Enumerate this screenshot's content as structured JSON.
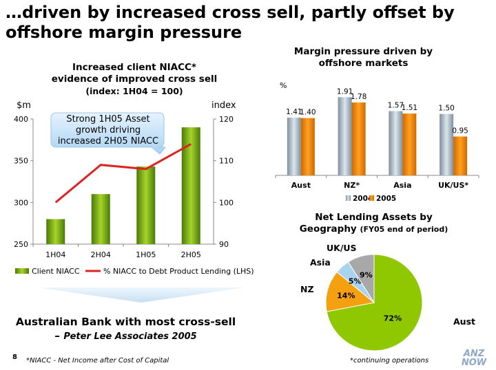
{
  "slide": {
    "title": "…driven by increased cross sell, partly offset by offshore margin pressure",
    "page_number": "8",
    "footnote_left": "*NIACC - Net Income after Cost of Capital",
    "footnote_right": "*continuing operations",
    "logo_text": [
      "ANZ",
      "NOW"
    ],
    "bottom_statement": "Australian Bank with most cross-sell",
    "bottom_attribution_dash": "–",
    "bottom_attribution": "Peter Lee Associates 2005"
  },
  "callout": {
    "lines": [
      "Strong 1H05 Asset",
      "growth driving",
      "increased 2H05 NIACC"
    ]
  },
  "chart_data": [
    {
      "type": "bar",
      "title_lines": [
        "Increased client NIACC*",
        "evidence of improved cross sell"
      ],
      "subtitle": "(index: 1H04 = 100)",
      "ylabel": "$m",
      "y2label": "index",
      "categories": [
        "1H04",
        "2H04",
        "1H05",
        "2H05"
      ],
      "ylim": [
        250,
        400
      ],
      "yticks": [
        "250",
        "300",
        "350",
        "400"
      ],
      "y2lim": [
        90,
        120
      ],
      "y2ticks": [
        "90",
        "100",
        "110",
        "120"
      ],
      "series": [
        {
          "name": "Client NIACC",
          "kind": "bar",
          "axis": "left",
          "color": "#6a9e10",
          "values": [
            280,
            310,
            343,
            390
          ]
        },
        {
          "name": "% NIACC to Debt Product Lending (LHS)",
          "kind": "line",
          "axis": "right",
          "color": "#dd2222",
          "values": [
            100,
            109,
            108,
            114
          ]
        }
      ],
      "legend": "bottom"
    },
    {
      "type": "bar",
      "title_lines": [
        "Margin pressure driven by",
        "offshore markets"
      ],
      "ylabel": "%",
      "categories": [
        "Aust",
        "NZ*",
        "Asia",
        "UK/US*"
      ],
      "ylim": [
        0,
        2.1
      ],
      "series": [
        {
          "name": "2004",
          "color": "#a9b8c4",
          "values": [
            1.41,
            1.91,
            1.57,
            1.5
          ],
          "labels": [
            "1.41",
            "1.91",
            "1.57",
            "1.50"
          ]
        },
        {
          "name": "2005",
          "color": "#f08c00",
          "values": [
            1.4,
            1.78,
            1.51,
            0.95
          ],
          "labels": [
            "1.40",
            "1.78",
            "1.51",
            "0.95"
          ]
        }
      ],
      "legend": "bottom"
    },
    {
      "type": "pie",
      "title": "Net Lending Assets by",
      "title2": "Geography",
      "title_note": "(FY05 end of period)",
      "slices": [
        {
          "label": "Aust.",
          "value": 72,
          "pct_label": "72%",
          "color": "#8fc800"
        },
        {
          "label": "NZ",
          "value": 14,
          "pct_label": "14%",
          "color": "#f5a010"
        },
        {
          "label": "Asia",
          "value": 5,
          "pct_label": "5%",
          "color": "#a8d4f0"
        },
        {
          "label": "UK/US",
          "value": 9,
          "pct_label": "9%",
          "color": "#a8a8a8"
        }
      ]
    }
  ]
}
